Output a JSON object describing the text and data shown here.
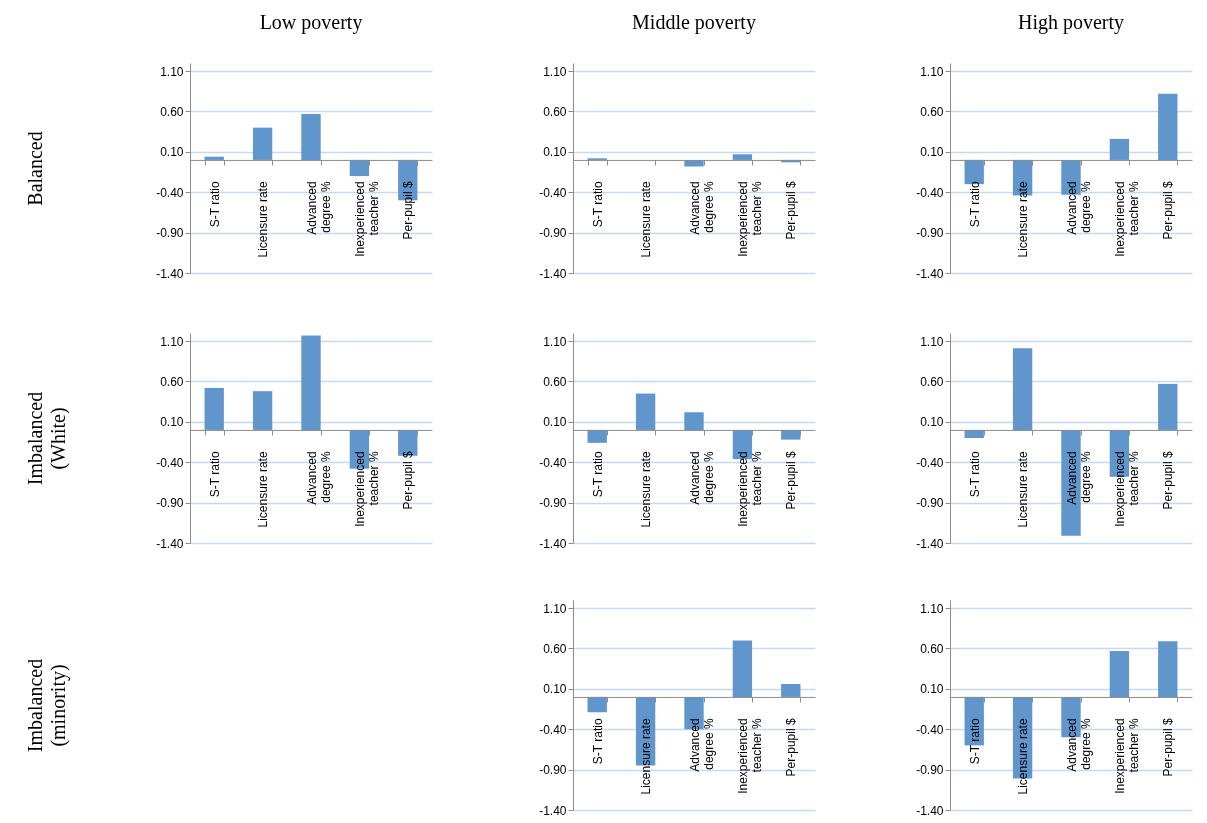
{
  "chart_data": [
    {
      "type": "bar",
      "title": "Low poverty",
      "ylabel": "Balanced",
      "categories": [
        "S-T ratio",
        "Licensure rate",
        "Advanced degree %",
        "Inexperienced teacher %",
        "Per-pupil $"
      ],
      "values": [
        0.04,
        0.4,
        0.57,
        -0.2,
        -0.5
      ],
      "color": "#6096cc",
      "ylim": [
        -1.4,
        1.2
      ],
      "yticks": [
        {
          "value": 1.1,
          "label": "1.10"
        },
        {
          "value": 0.6,
          "label": "0.60"
        },
        {
          "value": 0.1,
          "label": "0.10"
        },
        {
          "value": -0.4,
          "label": "-0.40"
        },
        {
          "value": -0.9,
          "label": "-0.90"
        },
        {
          "value": -1.4,
          "label": "-1.40"
        }
      ],
      "grid": "y"
    },
    {
      "type": "bar",
      "title": "Middle poverty",
      "categories": [
        "S-T ratio",
        "Licensure rate",
        "Advanced degree %",
        "Inexperienced teacher %",
        "Per-pupil $"
      ],
      "values": [
        0.02,
        0,
        -0.08,
        0.07,
        -0.03
      ],
      "color": "#6096cc",
      "ylim": [
        -1.4,
        1.2
      ],
      "yticks": [
        {
          "value": 1.1,
          "label": "1.10"
        },
        {
          "value": 0.6,
          "label": "0.60"
        },
        {
          "value": 0.1,
          "label": "0.10"
        },
        {
          "value": -0.4,
          "label": "-0.40"
        },
        {
          "value": -0.9,
          "label": "-0.90"
        },
        {
          "value": -1.4,
          "label": "-1.40"
        }
      ],
      "grid": "y"
    },
    {
      "type": "bar",
      "title": "High poverty",
      "categories": [
        "S-T ratio",
        "Licensure rate",
        "Advanced degree %",
        "Inexperienced teacher %",
        "Per-pupil $"
      ],
      "values": [
        -0.3,
        -0.44,
        -0.43,
        0.26,
        0.82
      ],
      "color": "#6096cc",
      "ylim": [
        -1.4,
        1.2
      ],
      "yticks": [
        {
          "value": 1.1,
          "label": "1.10"
        },
        {
          "value": 0.6,
          "label": "0.60"
        },
        {
          "value": 0.1,
          "label": "0.10"
        },
        {
          "value": -0.4,
          "label": "-0.40"
        },
        {
          "value": -0.9,
          "label": "-0.90"
        },
        {
          "value": -1.4,
          "label": "-1.40"
        }
      ],
      "grid": "y"
    },
    {
      "type": "bar",
      "ylabel": "Imbalanced (White)",
      "categories": [
        "S-T ratio",
        "Licensure rate",
        "Advanced degree %",
        "Inexperienced teacher %",
        "Per-pupil $"
      ],
      "values": [
        0.52,
        0.48,
        1.17,
        -0.48,
        -0.32
      ],
      "color": "#6096cc",
      "ylim": [
        -1.4,
        1.2
      ],
      "yticks": [
        {
          "value": 1.1,
          "label": "1.10"
        },
        {
          "value": 0.6,
          "label": "0.60"
        },
        {
          "value": 0.1,
          "label": "0.10"
        },
        {
          "value": -0.4,
          "label": "-0.40"
        },
        {
          "value": -0.9,
          "label": "-0.90"
        },
        {
          "value": -1.4,
          "label": "-1.40"
        }
      ],
      "grid": "y"
    },
    {
      "type": "bar",
      "categories": [
        "S-T ratio",
        "Licensure rate",
        "Advanced degree %",
        "Inexperienced teacher %",
        "Per-pupil $"
      ],
      "values": [
        -0.16,
        0.45,
        0.22,
        -0.36,
        -0.12
      ],
      "color": "#6096cc",
      "ylim": [
        -1.4,
        1.2
      ],
      "yticks": [
        {
          "value": 1.1,
          "label": "1.10"
        },
        {
          "value": 0.6,
          "label": "0.60"
        },
        {
          "value": 0.1,
          "label": "0.10"
        },
        {
          "value": -0.4,
          "label": "-0.40"
        },
        {
          "value": -0.9,
          "label": "-0.90"
        },
        {
          "value": -1.4,
          "label": "-1.40"
        }
      ],
      "grid": "y"
    },
    {
      "type": "bar",
      "categories": [
        "S-T ratio",
        "Licensure rate",
        "Advanced degree %",
        "Inexperienced teacher %",
        "Per-pupil $"
      ],
      "values": [
        -0.1,
        1.01,
        -1.31,
        -0.58,
        0.57
      ],
      "color": "#6096cc",
      "ylim": [
        -1.4,
        1.2
      ],
      "yticks": [
        {
          "value": 1.1,
          "label": "1.10"
        },
        {
          "value": 0.6,
          "label": "0.60"
        },
        {
          "value": 0.1,
          "label": "0.10"
        },
        {
          "value": -0.4,
          "label": "-0.40"
        },
        {
          "value": -0.9,
          "label": "-0.90"
        },
        {
          "value": -1.4,
          "label": "-1.40"
        }
      ],
      "grid": "y"
    },
    {
      "type": "bar",
      "ylabel": "Imbalanced (minority)",
      "categories": [
        "S-T ratio",
        "Licensure rate",
        "Advanced degree %",
        "Inexperienced teacher %",
        "Per-pupil $"
      ],
      "values": [
        -0.19,
        -0.85,
        -0.4,
        0.7,
        0.16
      ],
      "color": "#6096cc",
      "ylim": [
        -1.4,
        1.2
      ],
      "yticks": [
        {
          "value": 1.1,
          "label": "1.10"
        },
        {
          "value": 0.6,
          "label": "0.60"
        },
        {
          "value": 0.1,
          "label": "0.10"
        },
        {
          "value": -0.4,
          "label": "-0.40"
        },
        {
          "value": -0.9,
          "label": "-0.90"
        },
        {
          "value": -1.4,
          "label": "-1.40"
        }
      ],
      "grid": "y"
    },
    {
      "type": "bar",
      "categories": [
        "S-T ratio",
        "Licensure rate",
        "Advanced degree %",
        "Inexperienced teacher %",
        "Per-pupil $"
      ],
      "values": [
        -0.6,
        -1.01,
        -0.5,
        0.57,
        0.69
      ],
      "color": "#6096cc",
      "ylim": [
        -1.4,
        1.2
      ],
      "yticks": [
        {
          "value": 1.1,
          "label": "1.10"
        },
        {
          "value": 0.6,
          "label": "0.60"
        },
        {
          "value": 0.1,
          "label": "0.10"
        },
        {
          "value": -0.4,
          "label": "-0.40"
        },
        {
          "value": -0.9,
          "label": "-0.90"
        },
        {
          "value": -1.4,
          "label": "-1.40"
        }
      ],
      "grid": "y"
    }
  ]
}
